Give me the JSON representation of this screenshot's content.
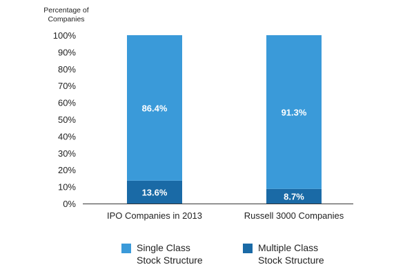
{
  "chart_data": {
    "type": "bar",
    "stacked": true,
    "ylabel": "Percentage of Companies",
    "ylabel_lines": [
      "Percentage of",
      "Companies"
    ],
    "ylim": [
      0,
      100
    ],
    "yticks": [
      "0%",
      "10%",
      "20%",
      "30%",
      "40%",
      "50%",
      "60%",
      "70%",
      "80%",
      "90%",
      "100%"
    ],
    "grid": false,
    "legend_position": "bottom",
    "categories": [
      "IPO Companies in 2013",
      "Russell 3000 Companies"
    ],
    "series": [
      {
        "name": "Multiple Class Stock Structure",
        "values": [
          13.6,
          8.7
        ],
        "labels": [
          "13.6%",
          "8.7%"
        ],
        "color": "#1a6aa6"
      },
      {
        "name": "Single Class Stock Structure",
        "values": [
          86.4,
          91.3
        ],
        "labels": [
          "86.4%",
          "91.3%"
        ],
        "color": "#3a9ad9"
      }
    ]
  },
  "legend": {
    "single": {
      "line1": "Single Class",
      "line2": "Stock Structure",
      "color": "#3a9ad9"
    },
    "multiple": {
      "line1": "Multiple Class",
      "line2": "Stock Structure",
      "color": "#1a6aa6"
    }
  }
}
